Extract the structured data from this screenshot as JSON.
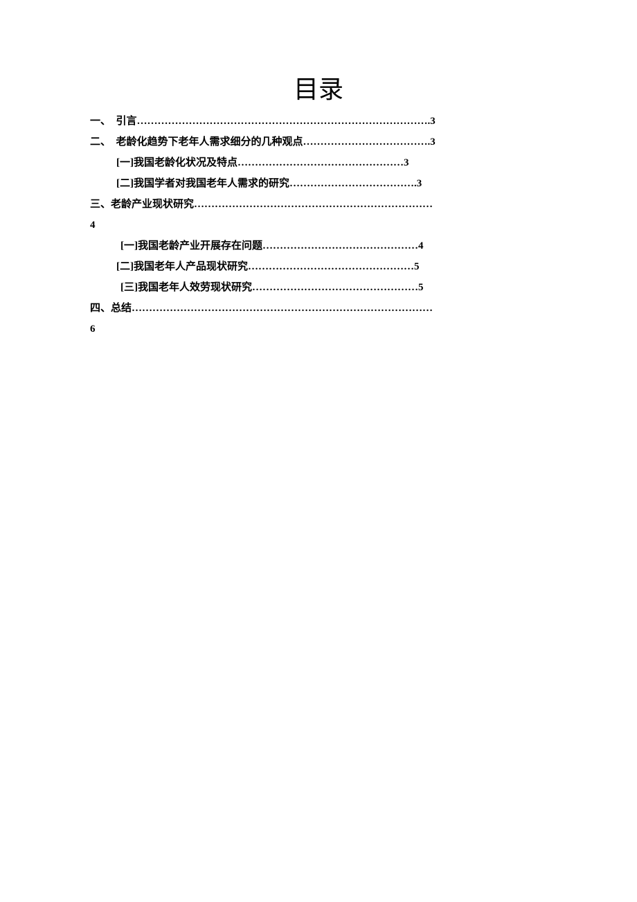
{
  "title": "目录",
  "entries": [
    {
      "level": "toc-level-1",
      "text": "一、　引言………………………………………………………………………….3"
    },
    {
      "level": "toc-level-1",
      "text": "二、　老龄化趋势下老年人需求细分的几种观点……………………………….3"
    },
    {
      "level": "toc-level-2",
      "text": "[一]我国老龄化状况及特点…………………………………………3"
    },
    {
      "level": "toc-level-2",
      "text": "[二]我国学者对我国老年人需求的研究……………………………….3"
    },
    {
      "level": "toc-level-1",
      "text": "三、老龄产业现状研究……………………………………………………………4",
      "wrap": true
    },
    {
      "level": "toc-level-2b",
      "text": "[一]我国老龄产业开展存在问题………………………………………4"
    },
    {
      "level": "toc-level-2",
      "text": "[二]我国老年人产品现状研究…………………………………………5"
    },
    {
      "level": "toc-level-2b",
      "text": "[三]我国老年人效劳现状研究…………………………………………5"
    },
    {
      "level": "toc-level-1",
      "text": "四、总结……………………………………………………………………………6",
      "wrap": true
    }
  ],
  "colors": {
    "background": "#ffffff",
    "text": "#000000"
  },
  "fonts": {
    "title_size": 36,
    "body_size": 15
  }
}
